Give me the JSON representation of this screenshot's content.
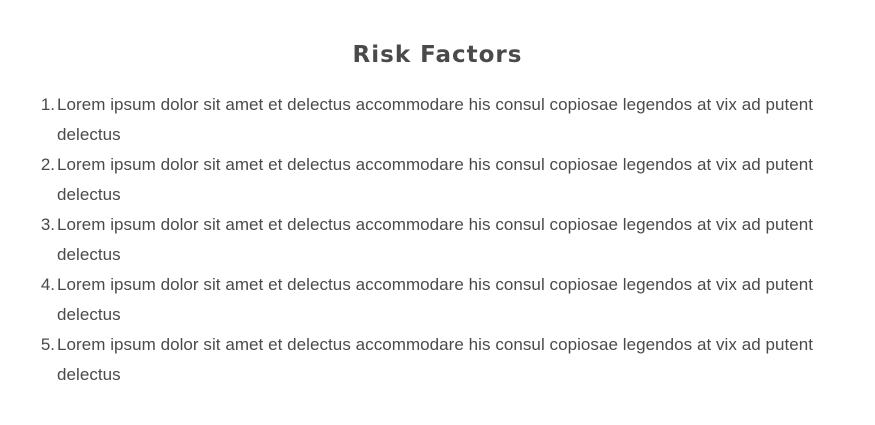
{
  "title": "Risk Factors",
  "items": [
    {
      "number": "1.",
      "text": "Lorem ipsum dolor sit amet et delectus accommodare his consul copiosae legendos at vix ad putent delectus"
    },
    {
      "number": "2.",
      "text": "Lorem ipsum dolor sit amet et delectus accommodare his consul copiosae legendos at vix ad putent delectus"
    },
    {
      "number": "3.",
      "text": "Lorem ipsum dolor sit amet et delectus accommodare his consul copiosae legendos at vix ad putent delectus"
    },
    {
      "number": "4.",
      "text": "Lorem ipsum dolor sit amet et delectus accommodare his consul copiosae legendos at vix ad putent delectus"
    },
    {
      "number": "5.",
      "text": "Lorem ipsum dolor sit amet et delectus accommodare his consul copiosae legendos at vix ad putent delectus"
    }
  ],
  "colors": {
    "text": "#4a4a4a",
    "background": "#ffffff"
  }
}
